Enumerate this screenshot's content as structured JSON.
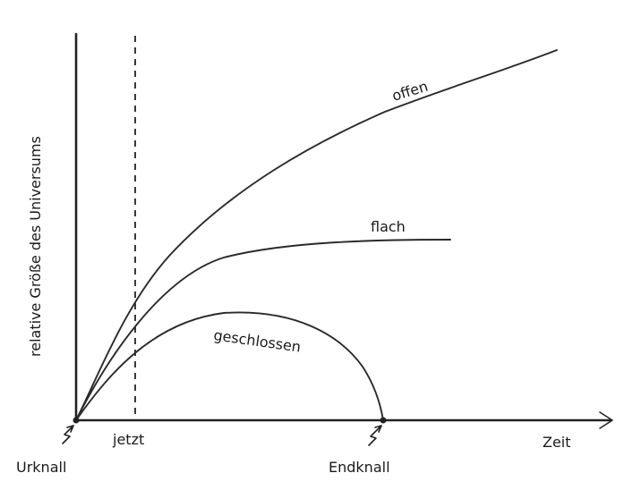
{
  "y_axis_label": "relative Größe des Universums",
  "x_axis_label": "Zeit",
  "curves": {
    "offen": "offen",
    "flach": "flach",
    "geschlossen": "geschlossen"
  },
  "markers": {
    "jetzt": "jetzt",
    "urknall": "Urknall",
    "endknall": "Endknall"
  }
}
